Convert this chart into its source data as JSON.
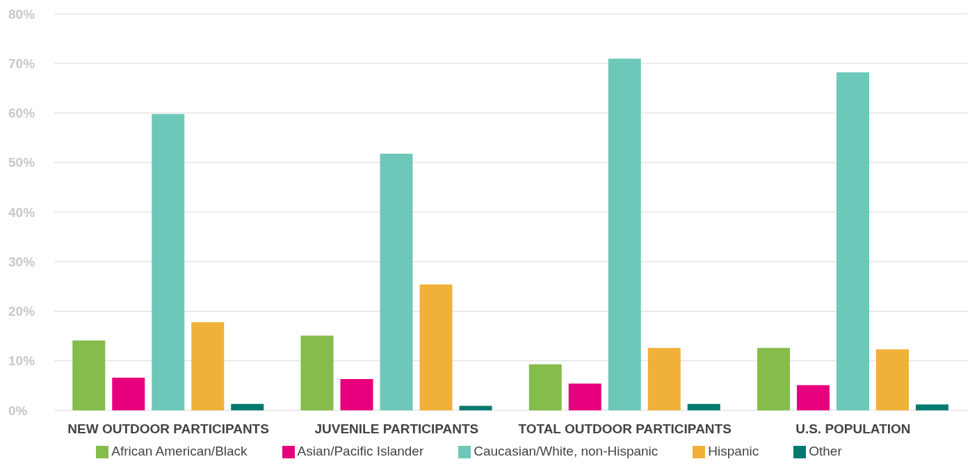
{
  "chart_data": {
    "type": "bar",
    "categories": [
      "NEW OUTDOOR PARTICIPANTS",
      "JUVENILE PARTICIPANTS",
      "TOTAL OUTDOOR PARTICIPANTS",
      "U.S. POPULATION"
    ],
    "series": [
      {
        "name": "African American/Black",
        "color": "#84bd4b",
        "values": [
          14.1,
          15.1,
          9.3,
          12.6
        ]
      },
      {
        "name": "Asian/Pacific Islander",
        "color": "#e6007e",
        "values": [
          6.6,
          6.3,
          5.4,
          5.1
        ]
      },
      {
        "name": "Caucasian/White, non-Hispanic",
        "color": "#6ec8ba",
        "values": [
          59.8,
          51.8,
          71.0,
          68.2
        ]
      },
      {
        "name": "Hispanic",
        "color": "#f0b13a",
        "values": [
          17.8,
          25.4,
          12.6,
          12.3
        ]
      },
      {
        "name": "Other",
        "color": "#007a6e",
        "values": [
          1.3,
          0.9,
          1.3,
          1.2
        ]
      }
    ],
    "ylim": [
      0,
      80
    ],
    "yticks": [
      {
        "value": 0,
        "label": "0%"
      },
      {
        "value": 10,
        "label": "10%"
      },
      {
        "value": 20,
        "label": "20%"
      },
      {
        "value": 30,
        "label": "30%"
      },
      {
        "value": 40,
        "label": "40%"
      },
      {
        "value": 50,
        "label": "50%"
      },
      {
        "value": 60,
        "label": "60%"
      },
      {
        "value": 70,
        "label": "70%"
      },
      {
        "value": 80,
        "label": "80%"
      }
    ],
    "grid": "y",
    "legend": "bottom"
  }
}
